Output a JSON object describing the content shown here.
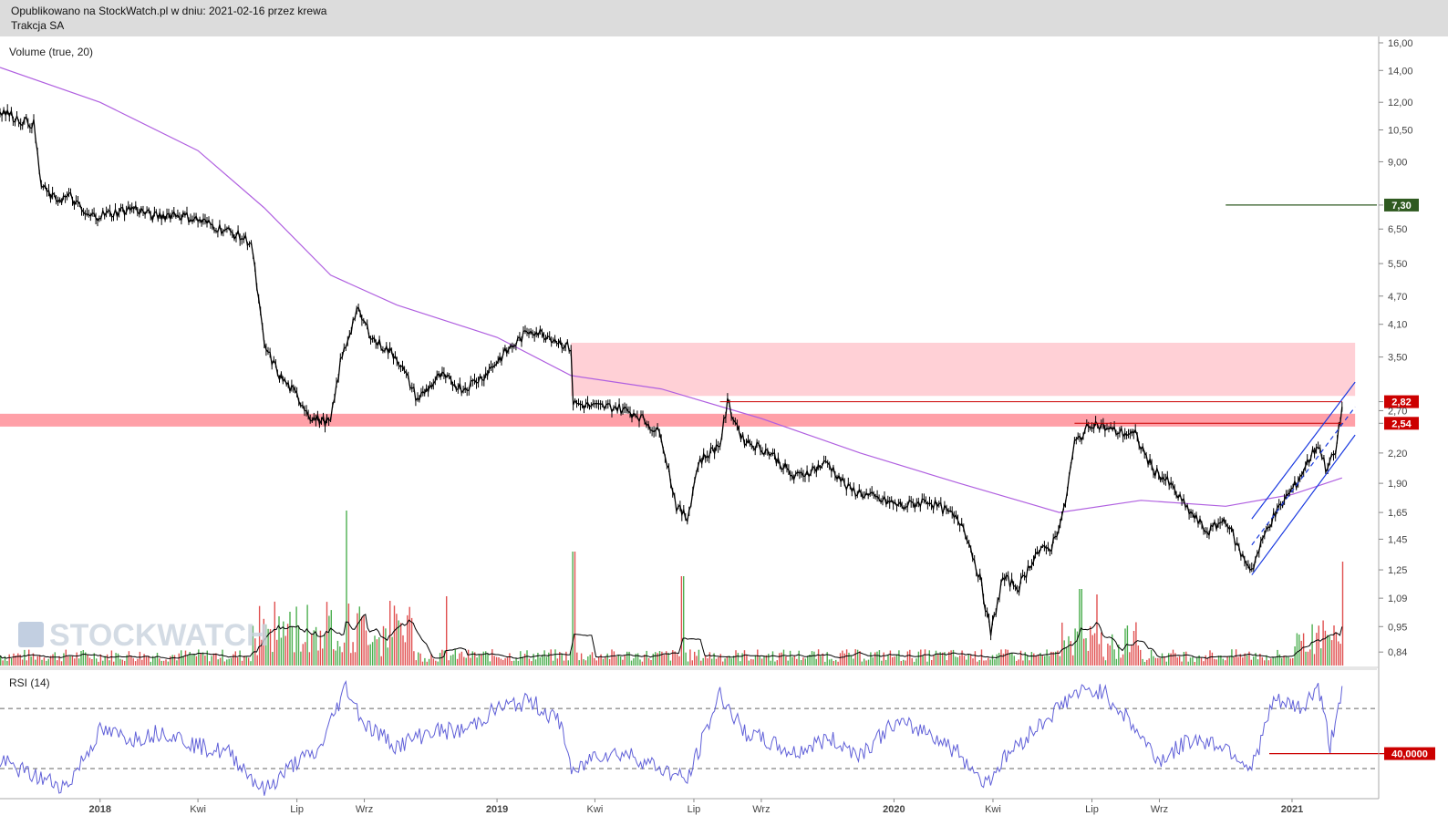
{
  "header": {
    "line1": "Opublikowano na StockWatch.pl w dniu: 2021-02-16 przez krewa",
    "line2": "Trakcja SA"
  },
  "watermark": "STOCKWATCH",
  "colors": {
    "candle": "#000000",
    "ma_line": "#b060e0",
    "rsi_line": "#6060d8",
    "volume_up": "#4caf50",
    "volume_down": "#e05050",
    "zone_light": "#ffd0d6",
    "zone_dark": "#ffa0a8",
    "channel": "#1a3ae0",
    "support_line": "#cc0000",
    "target_line": "#2f5a20"
  },
  "chart_data": [
    {
      "type": "line",
      "name_label": "price",
      "scale": "log",
      "x_ticks": [
        "2018",
        "Kwi",
        "Lip",
        "Wrz",
        "2019",
        "Kwi",
        "Lip",
        "Wrz",
        "2020",
        "Kwi",
        "Lip",
        "Wrz",
        "2021"
      ],
      "y_ticks": [
        "16,00",
        "14,00",
        "12,00",
        "10,50",
        "9,00",
        "7,30",
        "6,50",
        "5,50",
        "4,70",
        "4,10",
        "3,50",
        "2,82",
        "2,70",
        "2,54",
        "2,20",
        "1,90",
        "1,65",
        "1,45",
        "1,25",
        "1,09",
        "0,95",
        "0,84"
      ],
      "y_range": [
        0.78,
        16.5
      ],
      "price_path": [
        [
          "2017-10-01",
          11.6
        ],
        [
          "2017-10-20",
          11.0
        ],
        [
          "2017-11-01",
          10.8
        ],
        [
          "2017-11-08",
          8.0
        ],
        [
          "2017-11-20",
          7.5
        ],
        [
          "2017-12-05",
          7.6
        ],
        [
          "2017-12-20",
          6.9
        ],
        [
          "2018-01-10",
          7.0
        ],
        [
          "2018-02-01",
          7.2
        ],
        [
          "2018-02-20",
          6.9
        ],
        [
          "2018-03-10",
          7.0
        ],
        [
          "2018-04-01",
          6.8
        ],
        [
          "2018-05-01",
          6.4
        ],
        [
          "2018-05-20",
          6.1
        ],
        [
          "2018-06-01",
          3.7
        ],
        [
          "2018-06-15",
          3.2
        ],
        [
          "2018-07-01",
          2.9
        ],
        [
          "2018-07-15",
          2.6
        ],
        [
          "2018-08-01",
          2.55
        ],
        [
          "2018-08-10",
          3.4
        ],
        [
          "2018-08-25",
          4.4
        ],
        [
          "2018-09-10",
          3.8
        ],
        [
          "2018-10-01",
          3.5
        ],
        [
          "2018-10-20",
          2.85
        ],
        [
          "2018-11-10",
          3.2
        ],
        [
          "2018-12-01",
          3.0
        ],
        [
          "2018-12-20",
          3.2
        ],
        [
          "2019-01-10",
          3.6
        ],
        [
          "2019-02-01",
          4.0
        ],
        [
          "2019-02-20",
          3.85
        ],
        [
          "2019-03-10",
          3.65
        ],
        [
          "2019-03-12",
          2.8
        ],
        [
          "2019-04-01",
          2.75
        ],
        [
          "2019-04-20",
          2.75
        ],
        [
          "2019-05-10",
          2.65
        ],
        [
          "2019-06-01",
          2.4
        ],
        [
          "2019-06-15",
          1.7
        ],
        [
          "2019-06-25",
          1.6
        ],
        [
          "2019-07-05",
          2.1
        ],
        [
          "2019-07-25",
          2.3
        ],
        [
          "2019-08-01",
          2.8
        ],
        [
          "2019-08-15",
          2.35
        ],
        [
          "2019-09-10",
          2.2
        ],
        [
          "2019-10-01",
          1.95
        ],
        [
          "2019-11-01",
          2.1
        ],
        [
          "2019-11-20",
          1.85
        ],
        [
          "2019-12-20",
          1.75
        ],
        [
          "2020-01-10",
          1.7
        ],
        [
          "2020-02-01",
          1.75
        ],
        [
          "2020-02-20",
          1.65
        ],
        [
          "2020-03-05",
          1.55
        ],
        [
          "2020-03-20",
          1.2
        ],
        [
          "2020-03-30",
          0.92
        ],
        [
          "2020-04-10",
          1.2
        ],
        [
          "2020-04-25",
          1.15
        ],
        [
          "2020-05-10",
          1.35
        ],
        [
          "2020-05-25",
          1.4
        ],
        [
          "2020-06-05",
          1.65
        ],
        [
          "2020-06-15",
          2.3
        ],
        [
          "2020-07-01",
          2.55
        ],
        [
          "2020-07-20",
          2.45
        ],
        [
          "2020-08-10",
          2.4
        ],
        [
          "2020-08-25",
          2.05
        ],
        [
          "2020-09-10",
          1.9
        ],
        [
          "2020-09-25",
          1.7
        ],
        [
          "2020-10-15",
          1.5
        ],
        [
          "2020-11-01",
          1.6
        ],
        [
          "2020-11-15",
          1.35
        ],
        [
          "2020-11-25",
          1.25
        ],
        [
          "2020-12-10",
          1.55
        ],
        [
          "2020-12-25",
          1.75
        ],
        [
          "2021-01-05",
          1.9
        ],
        [
          "2021-01-15",
          2.1
        ],
        [
          "2021-01-25",
          2.3
        ],
        [
          "2021-02-01",
          2.05
        ],
        [
          "2021-02-10",
          2.2
        ],
        [
          "2021-02-16",
          2.75
        ]
      ],
      "ma_path": [
        [
          "2017-10-01",
          14.2
        ],
        [
          "2018-01-01",
          12.0
        ],
        [
          "2018-04-01",
          9.5
        ],
        [
          "2018-06-01",
          7.2
        ],
        [
          "2018-08-01",
          5.2
        ],
        [
          "2018-10-01",
          4.5
        ],
        [
          "2019-01-01",
          3.85
        ],
        [
          "2019-03-10",
          3.2
        ],
        [
          "2019-06-01",
          3.0
        ],
        [
          "2019-09-01",
          2.6
        ],
        [
          "2019-12-01",
          2.2
        ],
        [
          "2020-03-01",
          1.9
        ],
        [
          "2020-06-01",
          1.65
        ],
        [
          "2020-08-15",
          1.75
        ],
        [
          "2020-11-01",
          1.7
        ],
        [
          "2021-01-01",
          1.8
        ],
        [
          "2021-02-16",
          1.95
        ]
      ],
      "volume_ma_label": "Volume (true, 20)",
      "annotations": {
        "resistance_zone": {
          "from": "2019-03-10",
          "to": "2021-02-28",
          "y_low": 2.9,
          "y_high": 3.75
        },
        "support_zone": {
          "from": "2017-10-01",
          "to": "2021-02-28",
          "y_low": 2.5,
          "y_high": 2.66
        },
        "line_2_82": {
          "from": "2019-07-25",
          "to": "2021-02-16",
          "y": 2.82
        },
        "line_2_54": {
          "from": "2020-06-15",
          "to": "2021-02-16",
          "y": 2.54
        },
        "line_7_30": {
          "from": "2020-11-01",
          "to": "2021-02-28",
          "y": 7.3
        },
        "channel_upper": [
          [
            "2020-11-25",
            1.6
          ],
          [
            "2021-02-28",
            3.1
          ]
        ],
        "channel_lower": [
          [
            "2020-11-25",
            1.22
          ],
          [
            "2021-02-28",
            2.4
          ]
        ],
        "channel_mid": [
          [
            "2020-11-25",
            1.41
          ],
          [
            "2021-02-28",
            2.75
          ]
        ]
      },
      "price_badges": [
        {
          "label": "2,82",
          "value": 2.82,
          "color": "#cc0000"
        },
        {
          "label": "2,54",
          "value": 2.54,
          "color": "#cc0000"
        },
        {
          "label": "7,30",
          "value": 7.3,
          "color": "#2f5a20"
        }
      ]
    },
    {
      "type": "line",
      "name_label": "RSI (14)",
      "y_range": [
        10,
        95
      ],
      "levels": [
        70,
        30
      ],
      "marker_label": "40,0000",
      "marker_value": 40,
      "rsi_path": [
        [
          "2017-10-01",
          35
        ],
        [
          "2017-11-01",
          25
        ],
        [
          "2017-12-01",
          18
        ],
        [
          "2018-01-01",
          55
        ],
        [
          "2018-02-01",
          50
        ],
        [
          "2018-03-01",
          55
        ],
        [
          "2018-04-01",
          45
        ],
        [
          "2018-05-01",
          40
        ],
        [
          "2018-06-01",
          15
        ],
        [
          "2018-07-01",
          35
        ],
        [
          "2018-07-20",
          40
        ],
        [
          "2018-08-15",
          85
        ],
        [
          "2018-09-01",
          60
        ],
        [
          "2018-10-01",
          45
        ],
        [
          "2018-11-01",
          55
        ],
        [
          "2018-12-01",
          55
        ],
        [
          "2019-01-01",
          70
        ],
        [
          "2019-02-01",
          75
        ],
        [
          "2019-03-01",
          60
        ],
        [
          "2019-03-12",
          25
        ],
        [
          "2019-04-01",
          40
        ],
        [
          "2019-05-01",
          40
        ],
        [
          "2019-06-01",
          30
        ],
        [
          "2019-06-25",
          22
        ],
        [
          "2019-07-25",
          80
        ],
        [
          "2019-08-15",
          55
        ],
        [
          "2019-10-01",
          40
        ],
        [
          "2019-11-01",
          50
        ],
        [
          "2019-12-01",
          40
        ],
        [
          "2020-01-01",
          60
        ],
        [
          "2020-02-01",
          55
        ],
        [
          "2020-03-01",
          40
        ],
        [
          "2020-03-25",
          20
        ],
        [
          "2020-04-15",
          40
        ],
        [
          "2020-05-15",
          60
        ],
        [
          "2020-06-15",
          80
        ],
        [
          "2020-07-10",
          82
        ],
        [
          "2020-08-01",
          65
        ],
        [
          "2020-09-01",
          35
        ],
        [
          "2020-10-01",
          50
        ],
        [
          "2020-11-01",
          45
        ],
        [
          "2020-11-25",
          30
        ],
        [
          "2020-12-15",
          75
        ],
        [
          "2021-01-10",
          70
        ],
        [
          "2021-01-25",
          85
        ],
        [
          "2021-02-05",
          45
        ],
        [
          "2021-02-16",
          85
        ]
      ]
    }
  ]
}
